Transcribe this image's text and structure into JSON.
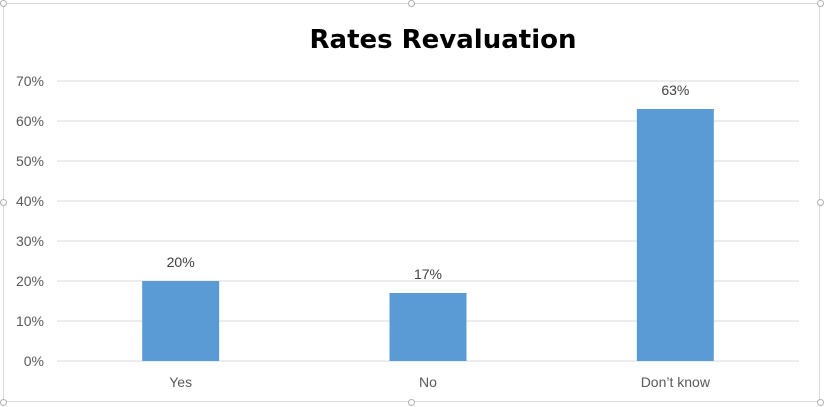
{
  "chart_data": {
    "type": "bar",
    "title": "Rates Revaluation",
    "categories": [
      "Yes",
      "No",
      "Don’t know"
    ],
    "values": [
      20,
      17,
      63
    ],
    "data_labels": [
      "20%",
      "17%",
      "63%"
    ],
    "yticks": [
      "0%",
      "10%",
      "20%",
      "30%",
      "40%",
      "50%",
      "60%",
      "70%"
    ],
    "ylim": [
      0,
      70
    ],
    "xlabel": "",
    "ylabel": "",
    "grid": true,
    "legend": "none",
    "bar_color": "#5b9bd5",
    "grid_color": "#d9d9d9"
  }
}
